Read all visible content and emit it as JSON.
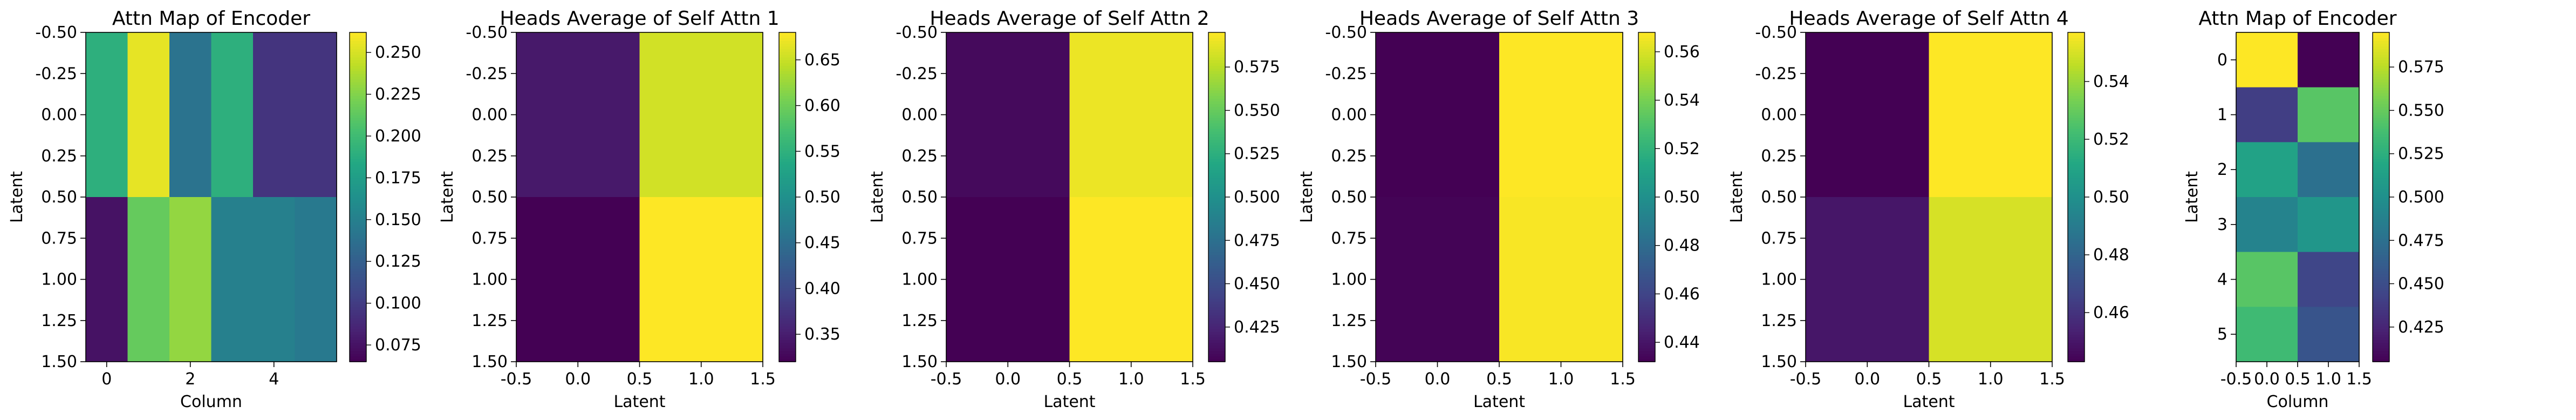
{
  "chart_data": [
    {
      "type": "heatmap",
      "title": "Attn Map of Encoder",
      "xlabel": "Column",
      "ylabel": "Latent",
      "xlim": [
        -0.5,
        5.5
      ],
      "ylim": [
        1.5,
        -0.5
      ],
      "xticks": [
        0,
        2,
        4
      ],
      "yticks": [
        -0.5,
        -0.25,
        0.0,
        0.25,
        0.5,
        0.75,
        1.0,
        1.25,
        1.5
      ],
      "cells": [
        [
          0.19,
          0.255,
          0.14,
          0.19,
          0.095,
          0.095
        ],
        [
          0.075,
          0.215,
          0.23,
          0.15,
          0.15,
          0.145
        ]
      ],
      "colorbar": {
        "min": 0.065,
        "max": 0.262,
        "ticks": [
          0.075,
          0.1,
          0.125,
          0.15,
          0.175,
          0.2,
          0.225,
          0.25
        ]
      }
    },
    {
      "type": "heatmap",
      "title": "Heads Average of Self Attn 1",
      "xlabel": "Latent",
      "ylabel": "Latent",
      "xlim": [
        -0.5,
        1.5
      ],
      "ylim": [
        1.5,
        -0.5
      ],
      "xticks": [
        -0.5,
        0.0,
        0.5,
        1.0,
        1.5
      ],
      "yticks": [
        -0.5,
        -0.25,
        0.0,
        0.25,
        0.5,
        0.75,
        1.0,
        1.25,
        1.5
      ],
      "cells": [
        [
          0.345,
          0.655
        ],
        [
          0.32,
          0.68
        ]
      ],
      "colorbar": {
        "min": 0.32,
        "max": 0.68,
        "ticks": [
          0.35,
          0.4,
          0.45,
          0.5,
          0.55,
          0.6,
          0.65
        ]
      }
    },
    {
      "type": "heatmap",
      "title": "Heads Average of Self Attn 2",
      "xlabel": "Latent",
      "ylabel": "Latent",
      "xlim": [
        -0.5,
        1.5
      ],
      "ylim": [
        1.5,
        -0.5
      ],
      "xticks": [
        -0.5,
        0.0,
        0.5,
        1.0,
        1.5
      ],
      "yticks": [
        -0.5,
        -0.25,
        0.0,
        0.25,
        0.5,
        0.75,
        1.0,
        1.25,
        1.5
      ],
      "cells": [
        [
          0.41,
          0.59
        ],
        [
          0.405,
          0.595
        ]
      ],
      "colorbar": {
        "min": 0.405,
        "max": 0.595,
        "ticks": [
          0.425,
          0.45,
          0.475,
          0.5,
          0.525,
          0.55,
          0.575
        ]
      }
    },
    {
      "type": "heatmap",
      "title": "Heads Average of Self Attn 3",
      "xlabel": "Latent",
      "ylabel": "Latent",
      "xlim": [
        -0.5,
        1.5
      ],
      "ylim": [
        1.5,
        -0.5
      ],
      "xticks": [
        -0.5,
        0.0,
        0.5,
        1.0,
        1.5
      ],
      "yticks": [
        -0.5,
        -0.25,
        0.0,
        0.25,
        0.5,
        0.75,
        1.0,
        1.25,
        1.5
      ],
      "cells": [
        [
          0.432,
          0.568
        ],
        [
          0.433,
          0.567
        ]
      ],
      "colorbar": {
        "min": 0.432,
        "max": 0.568,
        "ticks": [
          0.44,
          0.46,
          0.48,
          0.5,
          0.52,
          0.54,
          0.56
        ]
      }
    },
    {
      "type": "heatmap",
      "title": "Heads Average of Self Attn 4",
      "xlabel": "Latent",
      "ylabel": "Latent",
      "xlim": [
        -0.5,
        1.5
      ],
      "ylim": [
        1.5,
        -0.5
      ],
      "xticks": [
        -0.5,
        0.0,
        0.5,
        1.0,
        1.5
      ],
      "yticks": [
        -0.5,
        -0.25,
        0.0,
        0.25,
        0.5,
        0.75,
        1.0,
        1.25,
        1.5
      ],
      "cells": [
        [
          0.443,
          0.557
        ],
        [
          0.45,
          0.55
        ]
      ],
      "colorbar": {
        "min": 0.443,
        "max": 0.557,
        "ticks": [
          0.46,
          0.48,
          0.5,
          0.52,
          0.54
        ]
      }
    },
    {
      "type": "heatmap",
      "title": "Attn Map of Encoder",
      "xlabel": "Column",
      "ylabel": "Latent",
      "xlim": [
        -0.5,
        1.5
      ],
      "ylim": [
        5.5,
        -0.5
      ],
      "xticks": [
        -0.5,
        0.0,
        0.5,
        1.0,
        1.5
      ],
      "yticks": [
        0,
        1,
        2,
        3,
        4,
        5
      ],
      "cells": [
        [
          0.595,
          0.405
        ],
        [
          0.44,
          0.545
        ],
        [
          0.515,
          0.475
        ],
        [
          0.49,
          0.505
        ],
        [
          0.545,
          0.445
        ],
        [
          0.535,
          0.455
        ]
      ],
      "colorbar": {
        "min": 0.405,
        "max": 0.595,
        "ticks": [
          0.425,
          0.45,
          0.475,
          0.5,
          0.525,
          0.55,
          0.575
        ]
      }
    }
  ]
}
